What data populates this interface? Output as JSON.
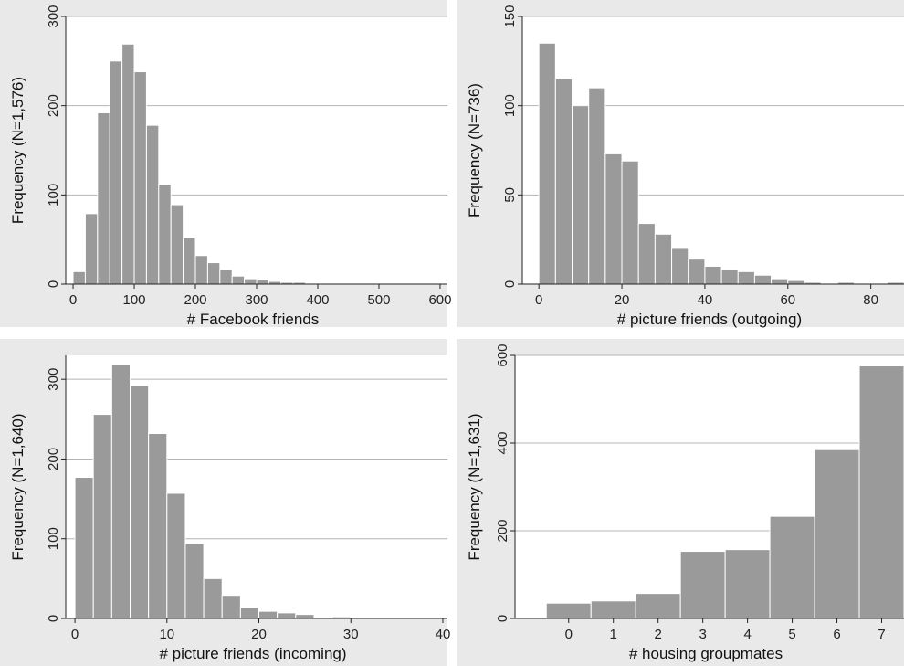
{
  "chart_data": [
    {
      "type": "bar",
      "xlabel": "# Facebook friends",
      "ylabel": "Frequency (N=1,576)",
      "xlim": [
        -12,
        612
      ],
      "ylim": [
        0,
        300
      ],
      "xticks": [
        0,
        100,
        200,
        300,
        400,
        500,
        600
      ],
      "yticks": [
        0,
        100,
        200,
        300
      ],
      "bins": [
        {
          "x0": 0,
          "x1": 20,
          "y": 14
        },
        {
          "x0": 20,
          "x1": 40,
          "y": 79
        },
        {
          "x0": 40,
          "x1": 60,
          "y": 192
        },
        {
          "x0": 60,
          "x1": 80,
          "y": 250
        },
        {
          "x0": 80,
          "x1": 100,
          "y": 269
        },
        {
          "x0": 100,
          "x1": 120,
          "y": 238
        },
        {
          "x0": 120,
          "x1": 140,
          "y": 178
        },
        {
          "x0": 140,
          "x1": 160,
          "y": 112
        },
        {
          "x0": 160,
          "x1": 180,
          "y": 89
        },
        {
          "x0": 180,
          "x1": 200,
          "y": 52
        },
        {
          "x0": 200,
          "x1": 220,
          "y": 32
        },
        {
          "x0": 220,
          "x1": 240,
          "y": 24
        },
        {
          "x0": 240,
          "x1": 260,
          "y": 16
        },
        {
          "x0": 260,
          "x1": 280,
          "y": 9
        },
        {
          "x0": 280,
          "x1": 300,
          "y": 6
        },
        {
          "x0": 300,
          "x1": 320,
          "y": 5
        },
        {
          "x0": 320,
          "x1": 340,
          "y": 3
        },
        {
          "x0": 340,
          "x1": 360,
          "y": 2
        },
        {
          "x0": 360,
          "x1": 380,
          "y": 2
        },
        {
          "x0": 380,
          "x1": 400,
          "y": 1
        },
        {
          "x0": 400,
          "x1": 420,
          "y": 1
        },
        {
          "x0": 420,
          "x1": 440,
          "y": 1
        },
        {
          "x0": 440,
          "x1": 460,
          "y": 1
        },
        {
          "x0": 460,
          "x1": 480,
          "y": 1
        },
        {
          "x0": 480,
          "x1": 500,
          "y": 1
        },
        {
          "x0": 500,
          "x1": 520,
          "y": 1
        },
        {
          "x0": 520,
          "x1": 540,
          "y": 1
        },
        {
          "x0": 540,
          "x1": 560,
          "y": 1
        },
        {
          "x0": 560,
          "x1": 580,
          "y": 1
        }
      ]
    },
    {
      "type": "bar",
      "xlabel": "# picture friends (outgoing)",
      "ylabel": "Frequency (N=736)",
      "xlim": [
        -4,
        88
      ],
      "ylim": [
        0,
        150
      ],
      "xticks": [
        0,
        20,
        40,
        60,
        80
      ],
      "yticks": [
        0,
        50,
        100,
        150
      ],
      "bins": [
        {
          "x0": 0,
          "x1": 4,
          "y": 135
        },
        {
          "x0": 4,
          "x1": 8,
          "y": 115
        },
        {
          "x0": 8,
          "x1": 12,
          "y": 100
        },
        {
          "x0": 12,
          "x1": 16,
          "y": 110
        },
        {
          "x0": 16,
          "x1": 20,
          "y": 73
        },
        {
          "x0": 20,
          "x1": 24,
          "y": 69
        },
        {
          "x0": 24,
          "x1": 28,
          "y": 34
        },
        {
          "x0": 28,
          "x1": 32,
          "y": 28
        },
        {
          "x0": 32,
          "x1": 36,
          "y": 20
        },
        {
          "x0": 36,
          "x1": 40,
          "y": 14
        },
        {
          "x0": 40,
          "x1": 44,
          "y": 10
        },
        {
          "x0": 44,
          "x1": 48,
          "y": 8
        },
        {
          "x0": 48,
          "x1": 52,
          "y": 7
        },
        {
          "x0": 52,
          "x1": 56,
          "y": 5
        },
        {
          "x0": 56,
          "x1": 60,
          "y": 3
        },
        {
          "x0": 60,
          "x1": 64,
          "y": 2
        },
        {
          "x0": 64,
          "x1": 68,
          "y": 1
        },
        {
          "x0": 68,
          "x1": 72,
          "y": 0.5
        },
        {
          "x0": 72,
          "x1": 76,
          "y": 1
        },
        {
          "x0": 76,
          "x1": 80,
          "y": 0.5
        },
        {
          "x0": 80,
          "x1": 84,
          "y": 0.5
        },
        {
          "x0": 84,
          "x1": 88,
          "y": 1
        }
      ]
    },
    {
      "type": "bar",
      "xlabel": "# picture friends (incoming)",
      "ylabel": "Frequency (N=1,640)",
      "xlim": [
        -1,
        40.5
      ],
      "ylim": [
        0,
        330
      ],
      "xticks": [
        0,
        10,
        20,
        30,
        40
      ],
      "yticks": [
        0,
        100,
        200,
        300
      ],
      "bins": [
        {
          "x0": 0,
          "x1": 2,
          "y": 177
        },
        {
          "x0": 2,
          "x1": 4,
          "y": 256
        },
        {
          "x0": 4,
          "x1": 6,
          "y": 318
        },
        {
          "x0": 6,
          "x1": 8,
          "y": 292
        },
        {
          "x0": 8,
          "x1": 10,
          "y": 232
        },
        {
          "x0": 10,
          "x1": 12,
          "y": 157
        },
        {
          "x0": 12,
          "x1": 14,
          "y": 94
        },
        {
          "x0": 14,
          "x1": 16,
          "y": 50
        },
        {
          "x0": 16,
          "x1": 18,
          "y": 29
        },
        {
          "x0": 18,
          "x1": 20,
          "y": 14
        },
        {
          "x0": 20,
          "x1": 22,
          "y": 9
        },
        {
          "x0": 22,
          "x1": 24,
          "y": 7
        },
        {
          "x0": 24,
          "x1": 26,
          "y": 5
        },
        {
          "x0": 26,
          "x1": 28,
          "y": 1
        },
        {
          "x0": 28,
          "x1": 30,
          "y": 2
        },
        {
          "x0": 30,
          "x1": 32,
          "y": 1
        },
        {
          "x0": 32,
          "x1": 34,
          "y": 0.5
        },
        {
          "x0": 34,
          "x1": 36,
          "y": 0.5
        },
        {
          "x0": 36,
          "x1": 38,
          "y": 1
        },
        {
          "x0": 38,
          "x1": 40,
          "y": 0.5
        }
      ]
    },
    {
      "type": "bar",
      "xlabel": "# housing groupmates",
      "ylabel": "Frequency (N=1,631)",
      "xlim": [
        -1.2,
        7.5
      ],
      "ylim": [
        0,
        600
      ],
      "xticks": [
        0,
        1,
        2,
        3,
        4,
        5,
        6,
        7
      ],
      "yticks": [
        0,
        200,
        400,
        600
      ],
      "bins": [
        {
          "x0": -0.5,
          "x1": 0.5,
          "y": 35
        },
        {
          "x0": 0.5,
          "x1": 1.5,
          "y": 40
        },
        {
          "x0": 1.5,
          "x1": 2.5,
          "y": 57
        },
        {
          "x0": 2.5,
          "x1": 3.5,
          "y": 153
        },
        {
          "x0": 3.5,
          "x1": 4.5,
          "y": 157
        },
        {
          "x0": 4.5,
          "x1": 5.5,
          "y": 233
        },
        {
          "x0": 5.5,
          "x1": 6.5,
          "y": 385
        },
        {
          "x0": 6.5,
          "x1": 7.5,
          "y": 576
        }
      ]
    }
  ]
}
